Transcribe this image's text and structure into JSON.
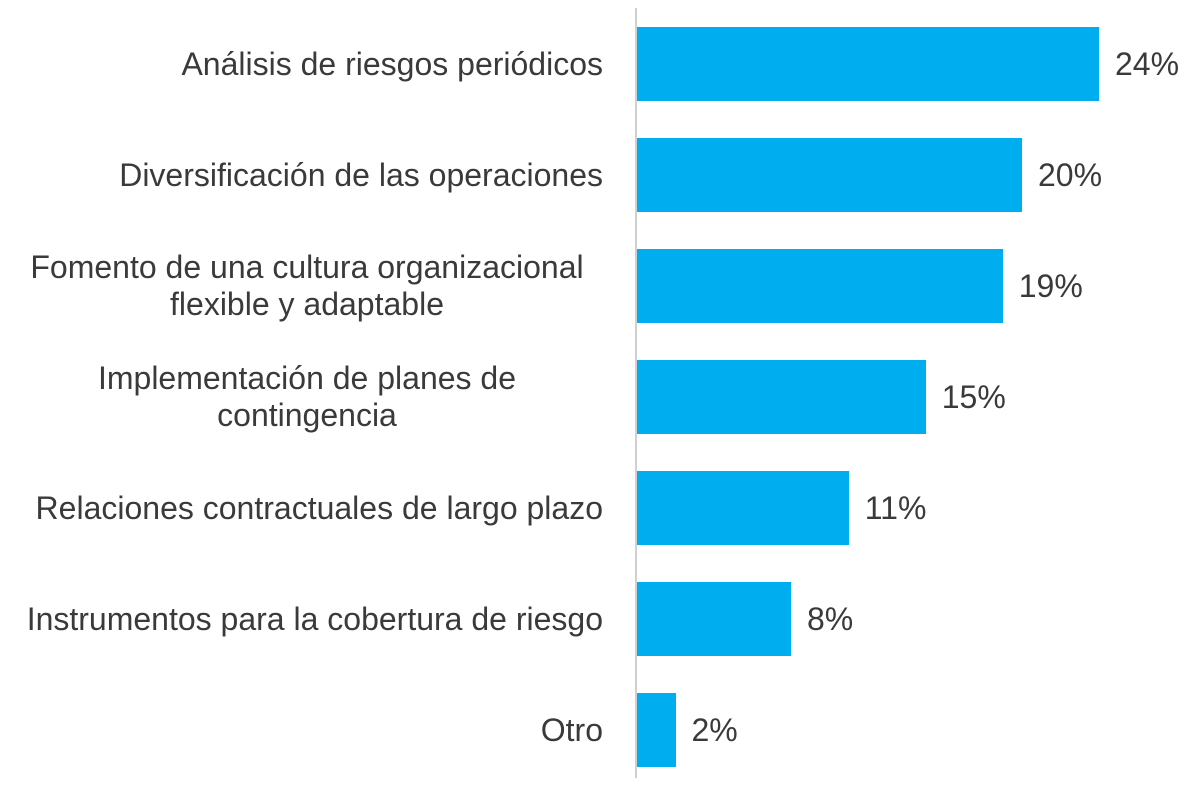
{
  "chart_data": {
    "type": "bar",
    "orientation": "horizontal",
    "color": "#00aeef",
    "categories": [
      "Análisis de riesgos periódicos",
      "Diversificación de las operaciones",
      "Fomento de una cultura organizacional flexible y adaptable",
      "Implementación de planes de contingencia",
      "Relaciones contractuales de largo plazo",
      "Instrumentos para la cobertura de riesgo",
      "Otro"
    ],
    "values": [
      24,
      20,
      19,
      15,
      11,
      8,
      2
    ],
    "value_labels": [
      "24%",
      "20%",
      "19%",
      "15%",
      "11%",
      "8%",
      "2%"
    ]
  }
}
